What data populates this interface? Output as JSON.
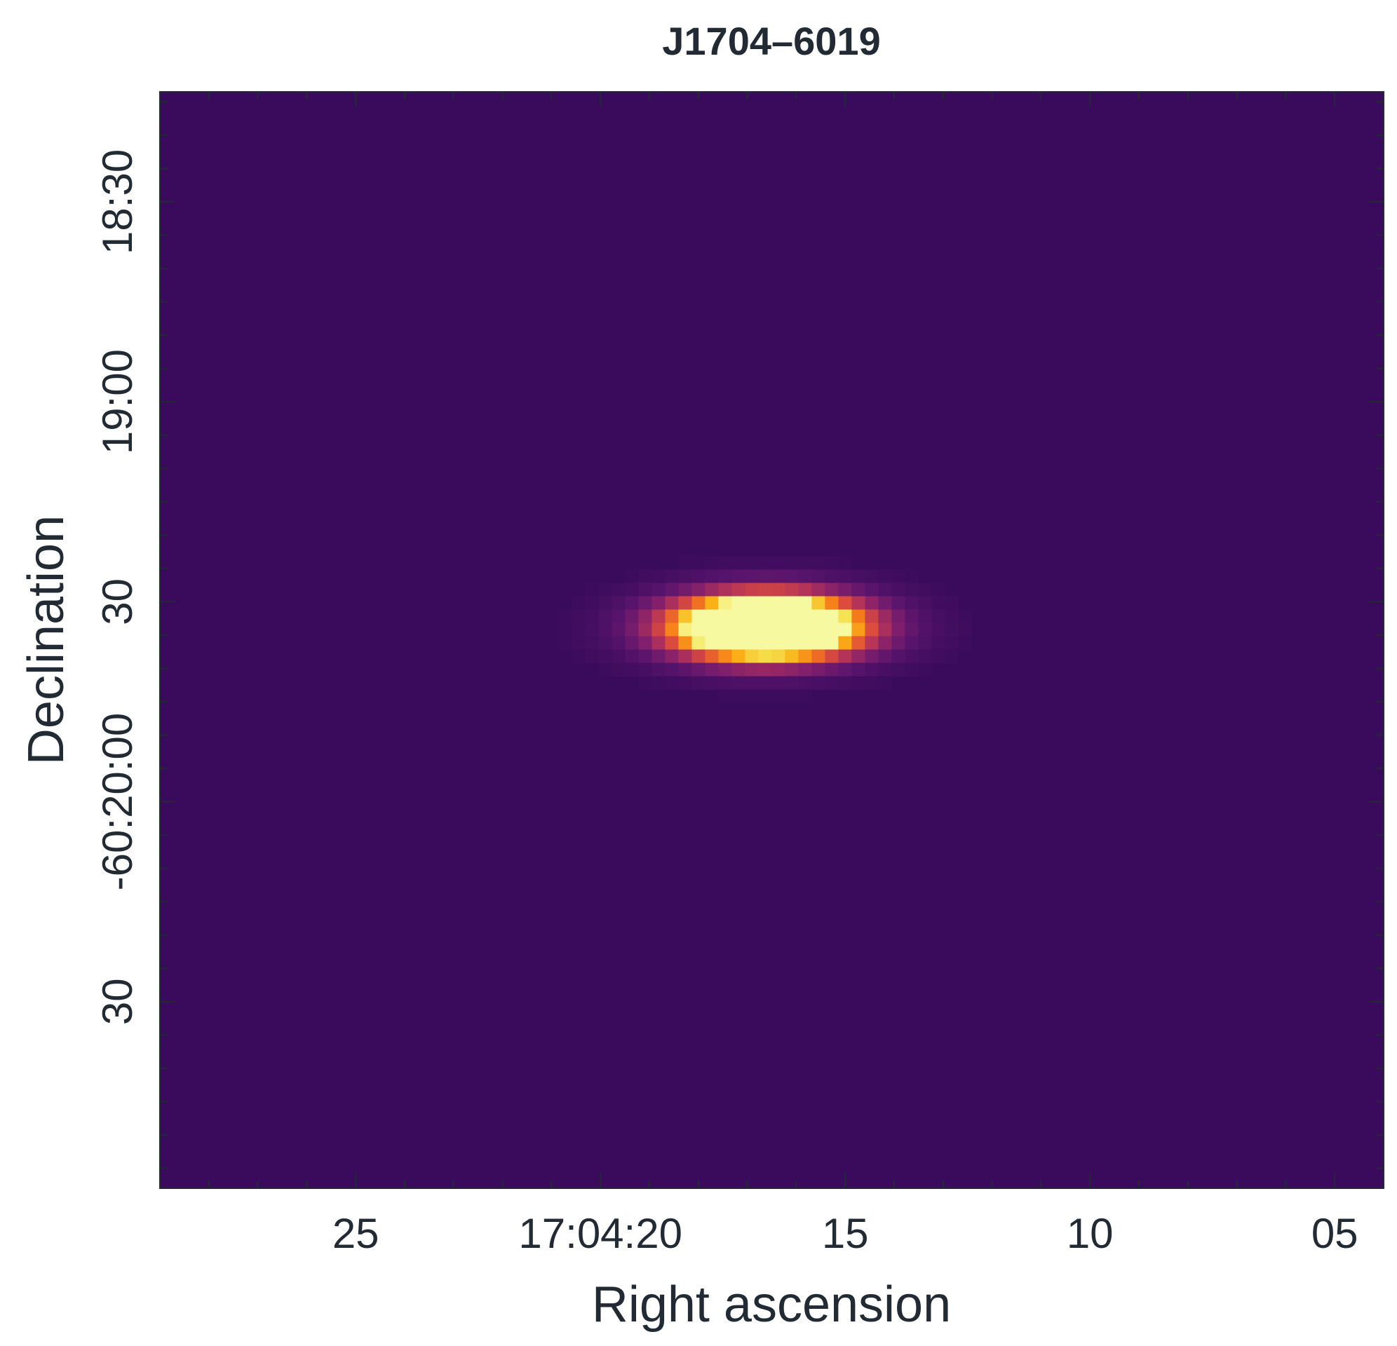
{
  "chart_data": {
    "type": "heatmap",
    "title": "J1704–6019",
    "xlabel": "Right ascension",
    "ylabel": "Declination",
    "colormap": "inferno",
    "colors": {
      "background": "#3a0b5c",
      "text": "#222a33"
    },
    "x_ticks": [
      {
        "sec": 25,
        "label": "25"
      },
      {
        "sec": 20,
        "label": "17:04:20"
      },
      {
        "sec": 15,
        "label": "15"
      },
      {
        "sec": 10,
        "label": "10"
      },
      {
        "sec": 5,
        "label": "05"
      }
    ],
    "y_ticks": [
      {
        "arcsec": 1110,
        "label": "18:30"
      },
      {
        "arcsec": 1140,
        "label": "19:00"
      },
      {
        "arcsec": 1170,
        "label": "30"
      },
      {
        "arcsec": 1200,
        "label": "-60:20:00"
      },
      {
        "arcsec": 1230,
        "label": "30"
      }
    ],
    "x_range_sec": [
      29,
      4
    ],
    "y_range_arcsec": [
      1093.5,
      1258
    ],
    "source": {
      "ra_sec": 16.6,
      "dec_arcsec": 1173.8,
      "sigma_ra_sec": 1.35,
      "sigma_dec_arcsec": 3.4,
      "peak_level": 1.0
    },
    "grid": false
  }
}
